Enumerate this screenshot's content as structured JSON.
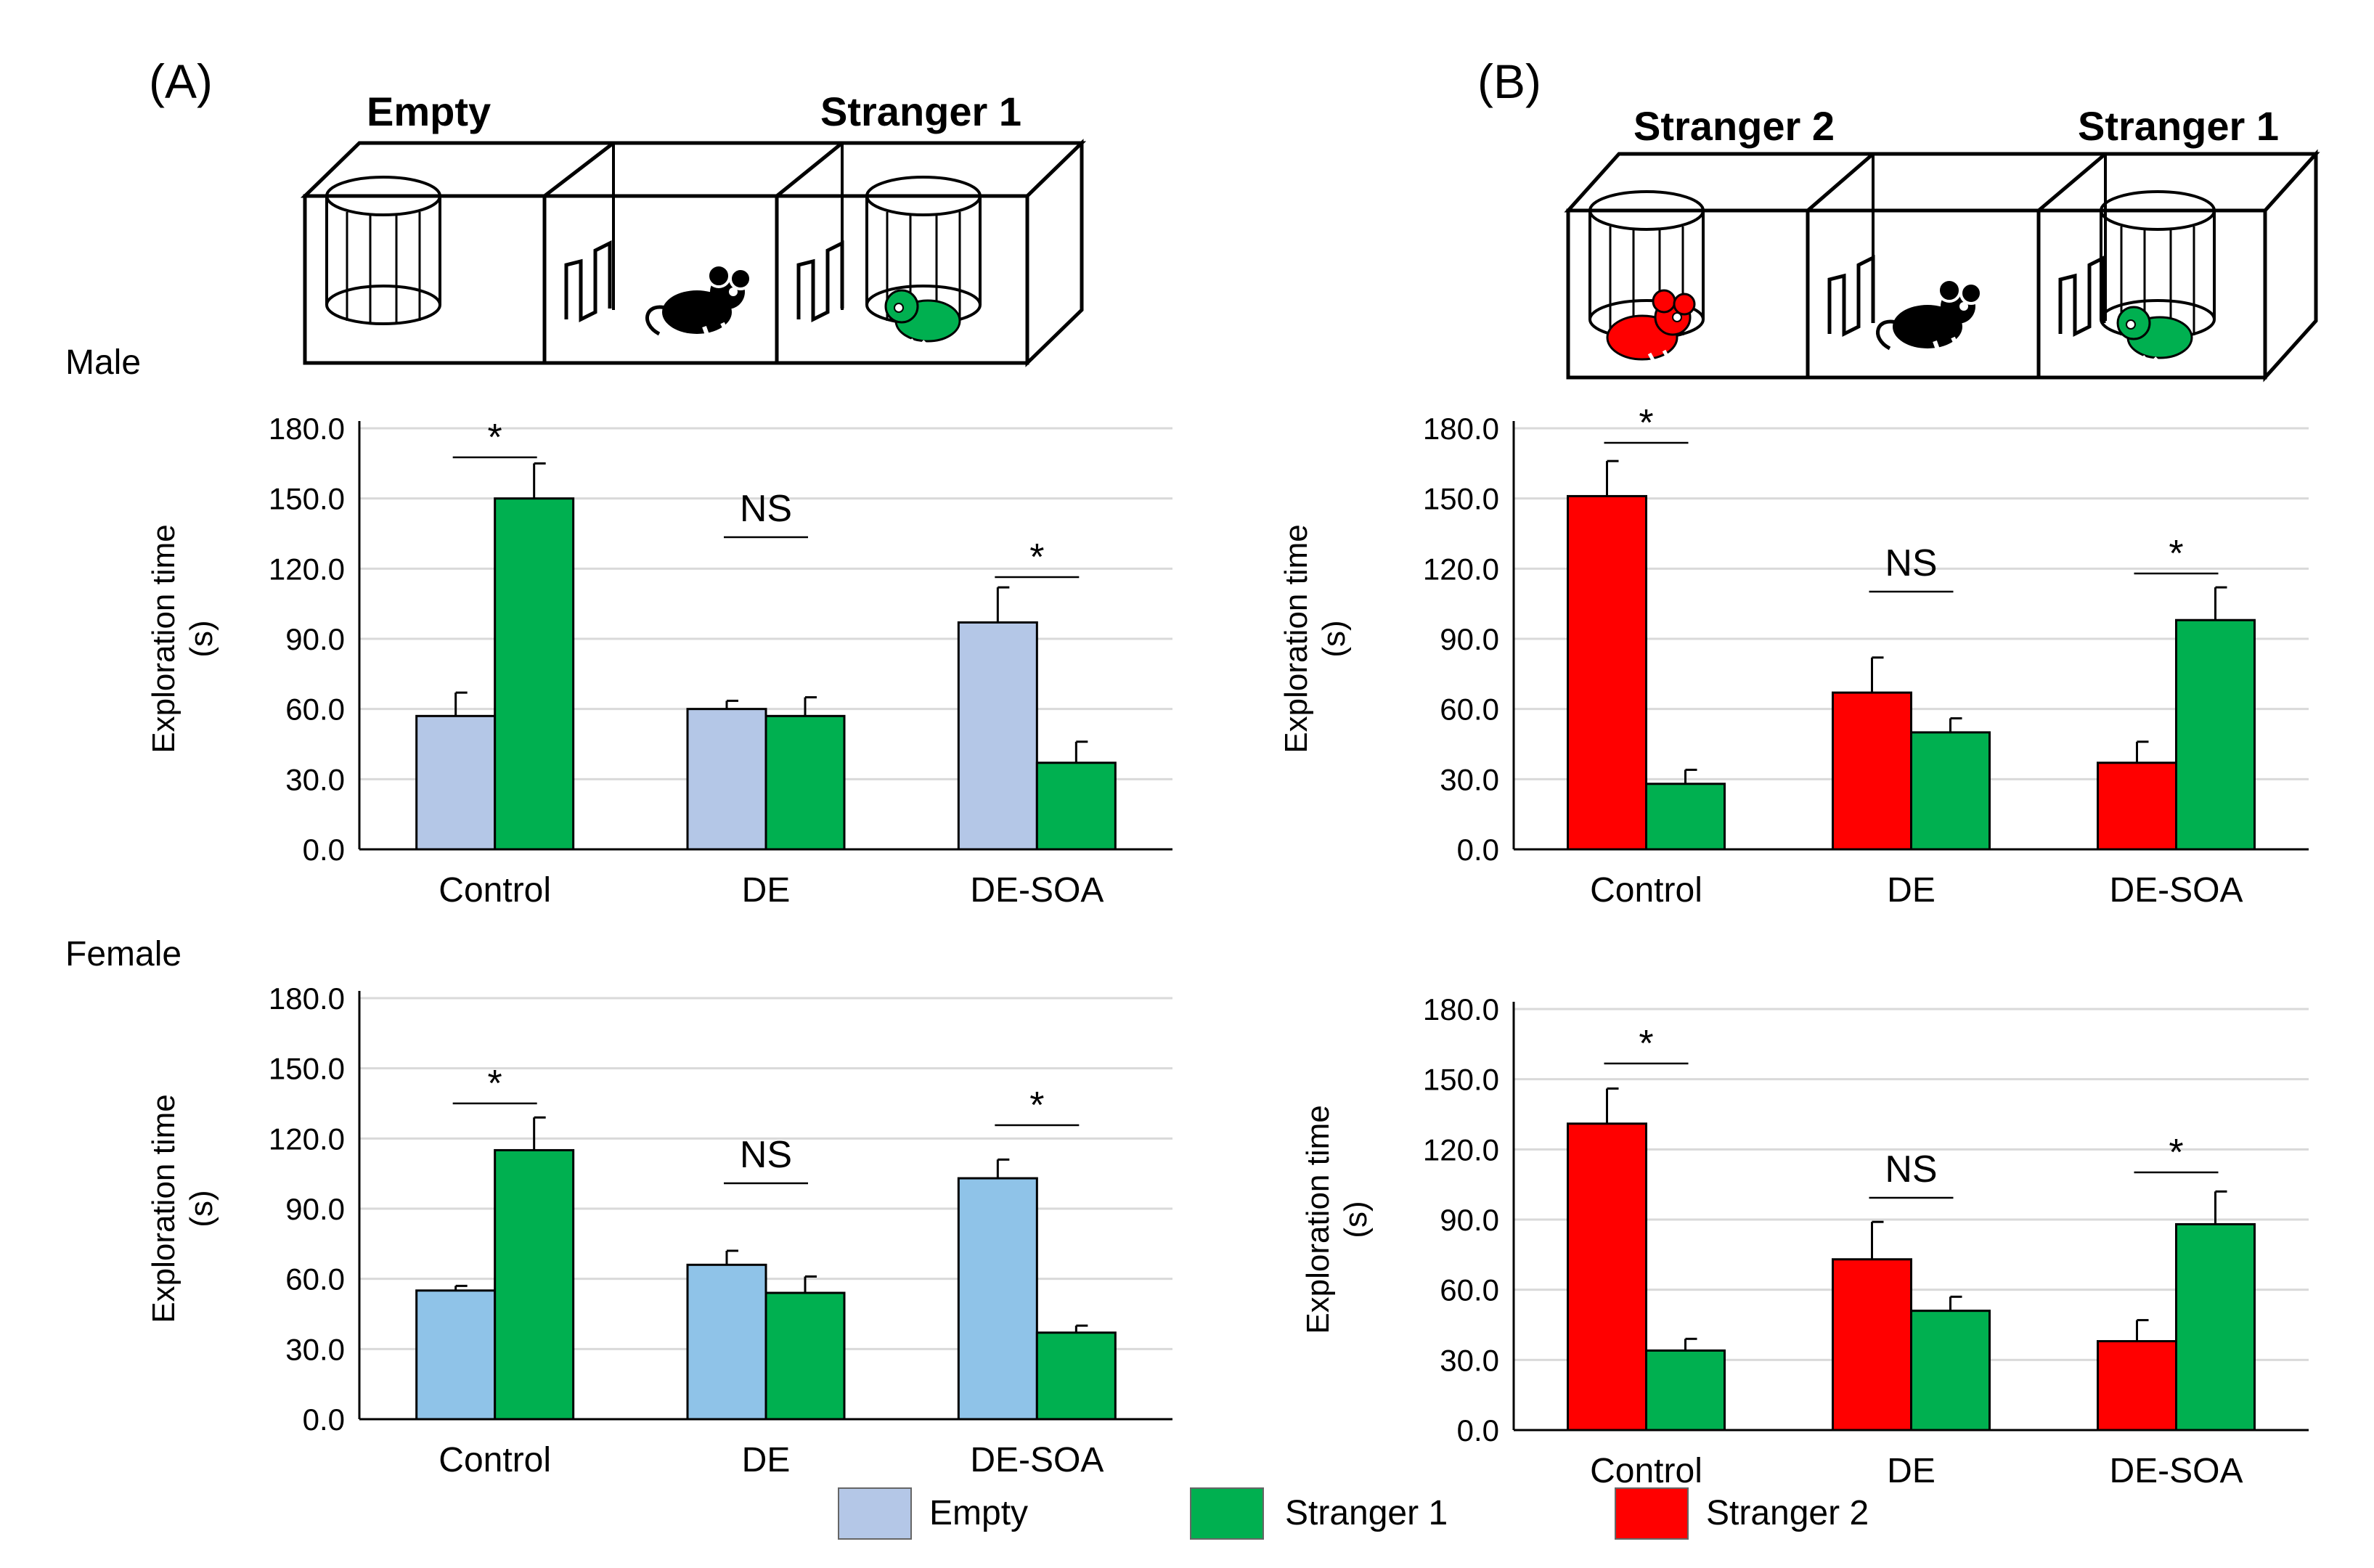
{
  "figure": {
    "panel_a": {
      "letter": "(A)",
      "left_box_label": "Empty",
      "right_box_label": "Stranger 1"
    },
    "panel_b": {
      "letter": "(B)",
      "left_box_label": "Stranger 2",
      "right_box_label": "Stranger 1"
    },
    "row_male": "Male",
    "row_female": "Female"
  },
  "legend": [
    {
      "label": "Empty",
      "color": "#b4c7e7"
    },
    {
      "label": "Stranger 1",
      "color": "#00b050"
    },
    {
      "label": "Stranger 2",
      "color": "#ff0000"
    }
  ],
  "chart_data": [
    {
      "id": "A-male",
      "type": "bar",
      "categories": [
        "Control",
        "DE",
        "DE-SOA"
      ],
      "ylabel": "Exploration time (s)",
      "ylim": [
        0,
        180
      ],
      "yticks": [
        "0.0",
        "30.0",
        "60.0",
        "90.0",
        "120.0",
        "150.0",
        "180.0"
      ],
      "series": [
        {
          "name": "Empty",
          "color": "#b4c7e7",
          "values": [
            57,
            60,
            97
          ],
          "errors": [
            10,
            3.5,
            15
          ]
        },
        {
          "name": "Stranger 1",
          "color": "#00b050",
          "values": [
            150,
            57,
            37
          ],
          "errors": [
            15,
            8,
            9
          ]
        }
      ],
      "significance": [
        "*",
        "NS",
        "*"
      ]
    },
    {
      "id": "B-male",
      "type": "bar",
      "categories": [
        "Control",
        "DE",
        "DE-SOA"
      ],
      "ylabel": "Exploration time (s)",
      "ylim": [
        0,
        180
      ],
      "yticks": [
        "0.0",
        "30.0",
        "60.0",
        "90.0",
        "120.0",
        "150.0",
        "180.0"
      ],
      "series": [
        {
          "name": "Stranger 2",
          "color": "#ff0000",
          "values": [
            151,
            67,
            37
          ],
          "errors": [
            15,
            15,
            9
          ]
        },
        {
          "name": "Stranger 1",
          "color": "#00b050",
          "values": [
            28,
            50,
            98
          ],
          "errors": [
            6,
            6,
            14
          ]
        }
      ],
      "significance": [
        "*",
        "NS",
        "*"
      ]
    },
    {
      "id": "A-female",
      "type": "bar",
      "categories": [
        "Control",
        "DE",
        "DE-SOA"
      ],
      "ylabel": "Exploration time (s)",
      "ylim": [
        0,
        180
      ],
      "yticks": [
        "0.0",
        "30.0",
        "60.0",
        "90.0",
        "120.0",
        "150.0",
        "180.0"
      ],
      "series": [
        {
          "name": "Empty",
          "color": "#8fc3e8",
          "values": [
            55,
            66,
            103
          ],
          "errors": [
            2,
            6,
            8
          ]
        },
        {
          "name": "Stranger 1",
          "color": "#00b050",
          "values": [
            115,
            54,
            37
          ],
          "errors": [
            14,
            7,
            3
          ]
        }
      ],
      "significance": [
        "*",
        "NS",
        "*"
      ]
    },
    {
      "id": "B-female",
      "type": "bar",
      "categories": [
        "Control",
        "DE",
        "DE-SOA"
      ],
      "ylabel": "Exploration time (s)",
      "ylim": [
        0,
        180
      ],
      "yticks": [
        "0.0",
        "30.0",
        "60.0",
        "90.0",
        "120.0",
        "150.0",
        "180.0"
      ],
      "series": [
        {
          "name": "Stranger 2",
          "color": "#ff0000",
          "values": [
            131,
            73,
            38
          ],
          "errors": [
            15,
            16,
            9
          ]
        },
        {
          "name": "Stranger 1",
          "color": "#00b050",
          "values": [
            34,
            51,
            88
          ],
          "errors": [
            5,
            6,
            14
          ]
        }
      ],
      "significance": [
        "*",
        "NS",
        "*"
      ]
    }
  ]
}
